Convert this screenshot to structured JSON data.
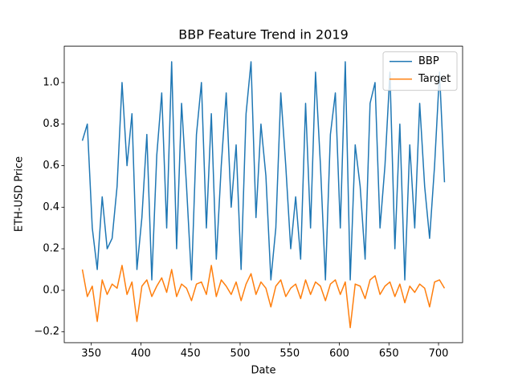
{
  "chart_data": {
    "type": "line",
    "title": "BBP Feature Trend in 2019",
    "x_label": "Date",
    "y_label": "ETH-USD Price",
    "x": [
      341,
      346,
      351,
      356,
      361,
      366,
      371,
      376,
      381,
      386,
      391,
      396,
      401,
      406,
      411,
      416,
      421,
      426,
      431,
      436,
      441,
      446,
      451,
      456,
      461,
      466,
      471,
      476,
      481,
      486,
      491,
      496,
      501,
      506,
      511,
      516,
      521,
      526,
      531,
      536,
      541,
      546,
      551,
      556,
      561,
      566,
      571,
      576,
      581,
      586,
      591,
      596,
      601,
      606,
      611,
      616,
      621,
      626,
      631,
      636,
      641,
      646,
      651,
      656,
      661,
      666,
      671,
      676,
      681,
      686,
      691,
      696,
      701,
      706
    ],
    "series": [
      {
        "name": "BBP",
        "color": "#1f77b4",
        "values": [
          0.72,
          0.8,
          0.3,
          0.1,
          0.45,
          0.2,
          0.25,
          0.5,
          1.0,
          0.6,
          0.85,
          0.1,
          0.35,
          0.75,
          0.05,
          0.65,
          0.95,
          0.3,
          1.1,
          0.2,
          0.9,
          0.5,
          0.05,
          0.75,
          1.0,
          0.3,
          0.85,
          0.15,
          0.6,
          0.95,
          0.4,
          0.7,
          0.1,
          0.85,
          1.1,
          0.35,
          0.8,
          0.55,
          0.05,
          0.3,
          0.95,
          0.6,
          0.2,
          0.45,
          0.15,
          0.9,
          0.3,
          1.05,
          0.6,
          0.05,
          0.75,
          0.95,
          0.3,
          1.1,
          0.05,
          0.7,
          0.5,
          0.15,
          0.9,
          1.0,
          0.3,
          0.6,
          1.05,
          0.2,
          0.8,
          0.05,
          0.7,
          0.3,
          0.9,
          0.5,
          0.25,
          0.6,
          1.05,
          0.52
        ]
      },
      {
        "name": "Target",
        "color": "#ff7f0e",
        "values": [
          0.1,
          -0.03,
          0.02,
          -0.15,
          0.05,
          -0.02,
          0.03,
          0.01,
          0.12,
          -0.02,
          0.04,
          -0.15,
          0.02,
          0.05,
          -0.03,
          0.02,
          0.06,
          -0.01,
          0.1,
          -0.03,
          0.03,
          0.01,
          -0.05,
          0.03,
          0.04,
          -0.02,
          0.12,
          -0.03,
          0.05,
          0.02,
          -0.02,
          0.04,
          -0.05,
          0.03,
          0.08,
          -0.02,
          0.04,
          0.01,
          -0.08,
          0.02,
          0.05,
          -0.03,
          0.01,
          0.03,
          -0.04,
          0.05,
          -0.02,
          0.04,
          0.02,
          -0.05,
          0.03,
          0.05,
          -0.02,
          0.04,
          -0.18,
          0.03,
          0.02,
          -0.04,
          0.05,
          0.07,
          -0.02,
          0.02,
          0.04,
          -0.03,
          0.03,
          -0.06,
          0.02,
          -0.01,
          0.03,
          0.01,
          -0.08,
          0.04,
          0.05,
          0.01
        ]
      }
    ],
    "xlim": [
      322.75,
      724.25
    ],
    "xticks": [
      350,
      400,
      450,
      500,
      550,
      600,
      650,
      700
    ],
    "ylim": [
      -0.252,
      1.175
    ],
    "yticks": [
      {
        "value": -0.2,
        "label": "−0.2"
      },
      {
        "value": 0,
        "label": "0.0"
      },
      {
        "value": 0.2,
        "label": "0.2"
      },
      {
        "value": 0.4,
        "label": "0.4"
      },
      {
        "value": 0.6,
        "label": "0.6"
      },
      {
        "value": 0.8,
        "label": "0.8"
      },
      {
        "value": 1.0,
        "label": "1.0"
      }
    ],
    "legend": "upper right"
  }
}
